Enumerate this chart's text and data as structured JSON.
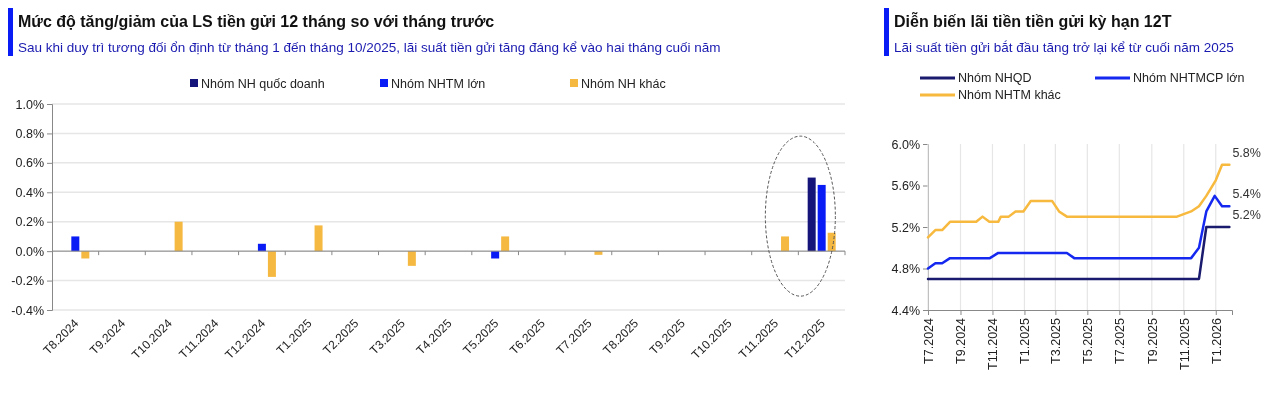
{
  "chart_data": [
    {
      "type": "bar",
      "title": "Mức độ tăng/giảm của LS tiền gửi 12 tháng so với tháng trước",
      "subtitle": "Sau khi duy trì tương đối ổn định từ tháng 1 đến tháng 10/2025, lãi suất tiền gửi tăng đáng kể vào hai tháng cuối năm",
      "categories": [
        "T8.2024",
        "T9.2024",
        "T10.2024",
        "T11.2024",
        "T12.2024",
        "T1.2025",
        "T2.2025",
        "T3.2025",
        "T4.2025",
        "T5.2025",
        "T6.2025",
        "T7.2025",
        "T8.2025",
        "T9.2025",
        "T10.2025",
        "T11.2025",
        "T12.2025"
      ],
      "series": [
        {
          "name": "Nhóm NH quốc doanh",
          "color": "#14147a",
          "values": [
            null,
            null,
            null,
            null,
            null,
            null,
            null,
            null,
            null,
            null,
            null,
            null,
            null,
            null,
            null,
            null,
            0.5
          ]
        },
        {
          "name": "Nhóm NHTM lớn",
          "color": "#0a1cf5",
          "values": [
            0.1,
            null,
            null,
            null,
            0.05,
            null,
            null,
            null,
            null,
            -0.05,
            null,
            null,
            null,
            null,
            null,
            null,
            0.45
          ]
        },
        {
          "name": "Nhóm NH khác",
          "color": "#f5b942",
          "values": [
            -0.05,
            null,
            0.2,
            null,
            -0.175,
            0.175,
            null,
            -0.1,
            null,
            0.1,
            null,
            -0.025,
            null,
            null,
            null,
            0.1,
            0.125
          ]
        }
      ],
      "ylim": [
        -0.4,
        1.0
      ],
      "yticks": [
        {
          "value": -0.4,
          "label": "-0.4%"
        },
        {
          "value": -0.2,
          "label": "-0.2%"
        },
        {
          "value": 0,
          "label": "0.0%"
        },
        {
          "value": 0.2,
          "label": "0.2%"
        },
        {
          "value": 0.4,
          "label": "0.4%"
        },
        {
          "value": 0.6,
          "label": "0.6%"
        },
        {
          "value": 0.8,
          "label": "0.8%"
        },
        {
          "value": 1.0,
          "label": "1.0%"
        }
      ],
      "grid": "y",
      "legend": "top"
    },
    {
      "type": "line",
      "title": "Diễn biến lãi tiền tiền gửi kỳ hạn 12T",
      "subtitle": "Lãi suất tiền gửi bắt đầu tăng trở lại kể từ cuối năm 2025",
      "series": [
        {
          "name": "Nhóm NHQD",
          "color": "#1a1a6e",
          "x": [
            "2024-07-01",
            "2025-11-30",
            "2025-12-14",
            "2026-01-27"
          ],
          "values": [
            4.7,
            4.7,
            5.2,
            5.2
          ],
          "value_labels": [
            null,
            null,
            null,
            "5.2%"
          ]
        },
        {
          "name": "Nhóm NHTMCP lớn",
          "color": "#1428f0",
          "x": [
            "2024-07-01",
            "2024-07-15",
            "2024-07-28",
            "2024-08-12",
            "2024-10-27",
            "2024-11-12",
            "2025-03-23",
            "2025-04-06",
            "2025-11-15",
            "2025-11-30",
            "2025-12-14",
            "2025-12-30",
            "2026-01-13",
            "2026-01-27"
          ],
          "values": [
            4.8,
            4.85,
            4.85,
            4.9,
            4.9,
            4.95,
            4.95,
            4.9,
            4.9,
            5.0,
            5.35,
            5.5,
            5.4,
            5.4
          ],
          "value_labels": [
            null,
            null,
            null,
            null,
            null,
            null,
            null,
            null,
            null,
            null,
            null,
            null,
            null,
            "5.4%"
          ]
        },
        {
          "name": "Nhóm NHTM khác",
          "color": "#f7b93e",
          "x": [
            "2024-07-01",
            "2024-07-15",
            "2024-07-28",
            "2024-08-12",
            "2024-10-01",
            "2024-10-13",
            "2024-10-26",
            "2024-11-12",
            "2024-11-17",
            "2024-12-02",
            "2024-12-15",
            "2024-12-30",
            "2025-01-13",
            "2025-02-23",
            "2025-03-08",
            "2025-03-23",
            "2025-10-19",
            "2025-11-15",
            "2025-11-30",
            "2025-12-14",
            "2026-01-01",
            "2026-01-13",
            "2026-01-27"
          ],
          "values": [
            5.1,
            5.17,
            5.17,
            5.25,
            5.25,
            5.3,
            5.25,
            5.25,
            5.3,
            5.3,
            5.35,
            5.35,
            5.45,
            5.45,
            5.35,
            5.3,
            5.3,
            5.35,
            5.4,
            5.5,
            5.65,
            5.8,
            5.8
          ],
          "value_labels": [
            null,
            null,
            null,
            null,
            null,
            null,
            null,
            null,
            null,
            null,
            null,
            null,
            null,
            null,
            null,
            null,
            null,
            null,
            null,
            null,
            null,
            null,
            "5.8%"
          ]
        }
      ],
      "xlim": [
        "2024-07-01",
        "2026-02-01"
      ],
      "xticks": [
        {
          "value": "2024-07-01",
          "label": "T7.2024"
        },
        {
          "value": "2024-09-01",
          "label": "T9.2024"
        },
        {
          "value": "2024-11-01",
          "label": "T11.2024"
        },
        {
          "value": "2025-01-01",
          "label": "T1.2025"
        },
        {
          "value": "2025-03-01",
          "label": "T3.2025"
        },
        {
          "value": "2025-05-01",
          "label": "T5.2025"
        },
        {
          "value": "2025-07-01",
          "label": "T7.2025"
        },
        {
          "value": "2025-09-01",
          "label": "T9.2025"
        },
        {
          "value": "2025-11-01",
          "label": "T11.2025"
        },
        {
          "value": "2026-01-01",
          "label": "T1.2026"
        }
      ],
      "ylim": [
        4.4,
        6.0
      ],
      "yticks": [
        {
          "value": 4.4,
          "label": "4.4%"
        },
        {
          "value": 4.8,
          "label": "4.8%"
        },
        {
          "value": 5.2,
          "label": "5.2%"
        },
        {
          "value": 5.6,
          "label": "5.6%"
        },
        {
          "value": 6.0,
          "label": "6.0%"
        }
      ],
      "grid": "x",
      "legend": "top"
    }
  ]
}
